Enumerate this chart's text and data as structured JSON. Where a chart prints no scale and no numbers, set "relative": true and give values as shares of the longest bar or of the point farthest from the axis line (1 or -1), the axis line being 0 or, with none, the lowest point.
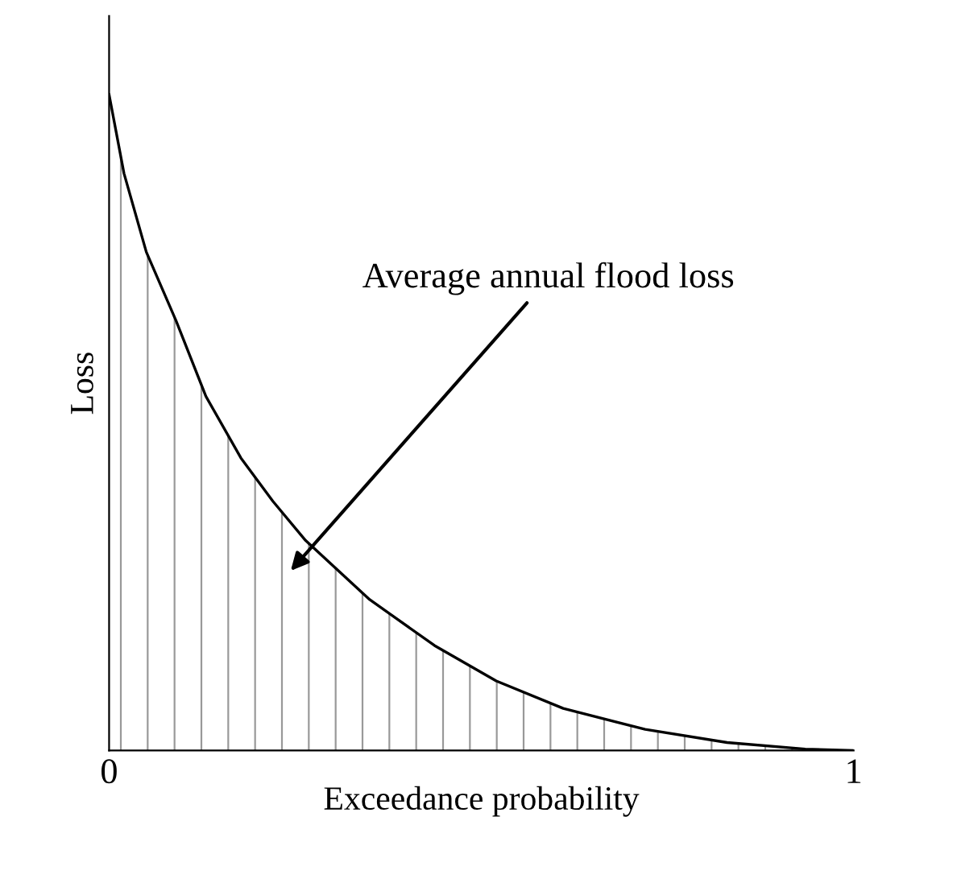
{
  "chart_data": {
    "type": "area",
    "relative": true,
    "xlabel": "Exceedance probability",
    "ylabel": "Loss",
    "x": [
      0,
      0.02,
      0.05,
      0.09,
      0.13,
      0.177,
      0.22,
      0.264,
      0.35,
      0.437,
      0.52,
      0.61,
      0.72,
      0.83,
      0.935,
      1
    ],
    "series": [
      {
        "color": "#000000",
        "values": [
          1,
          0.88,
          0.76,
          0.655,
          0.54,
          0.446,
          0.38,
          0.32,
          0.23,
          0.16,
          0.106,
          0.064,
          0.032,
          0.012,
          0.002,
          0
        ]
      }
    ],
    "xlim": [
      0,
      1
    ],
    "xticks": [
      0,
      1
    ],
    "tick_labels": "x",
    "annotations": [
      "Average annual flood loss"
    ]
  }
}
